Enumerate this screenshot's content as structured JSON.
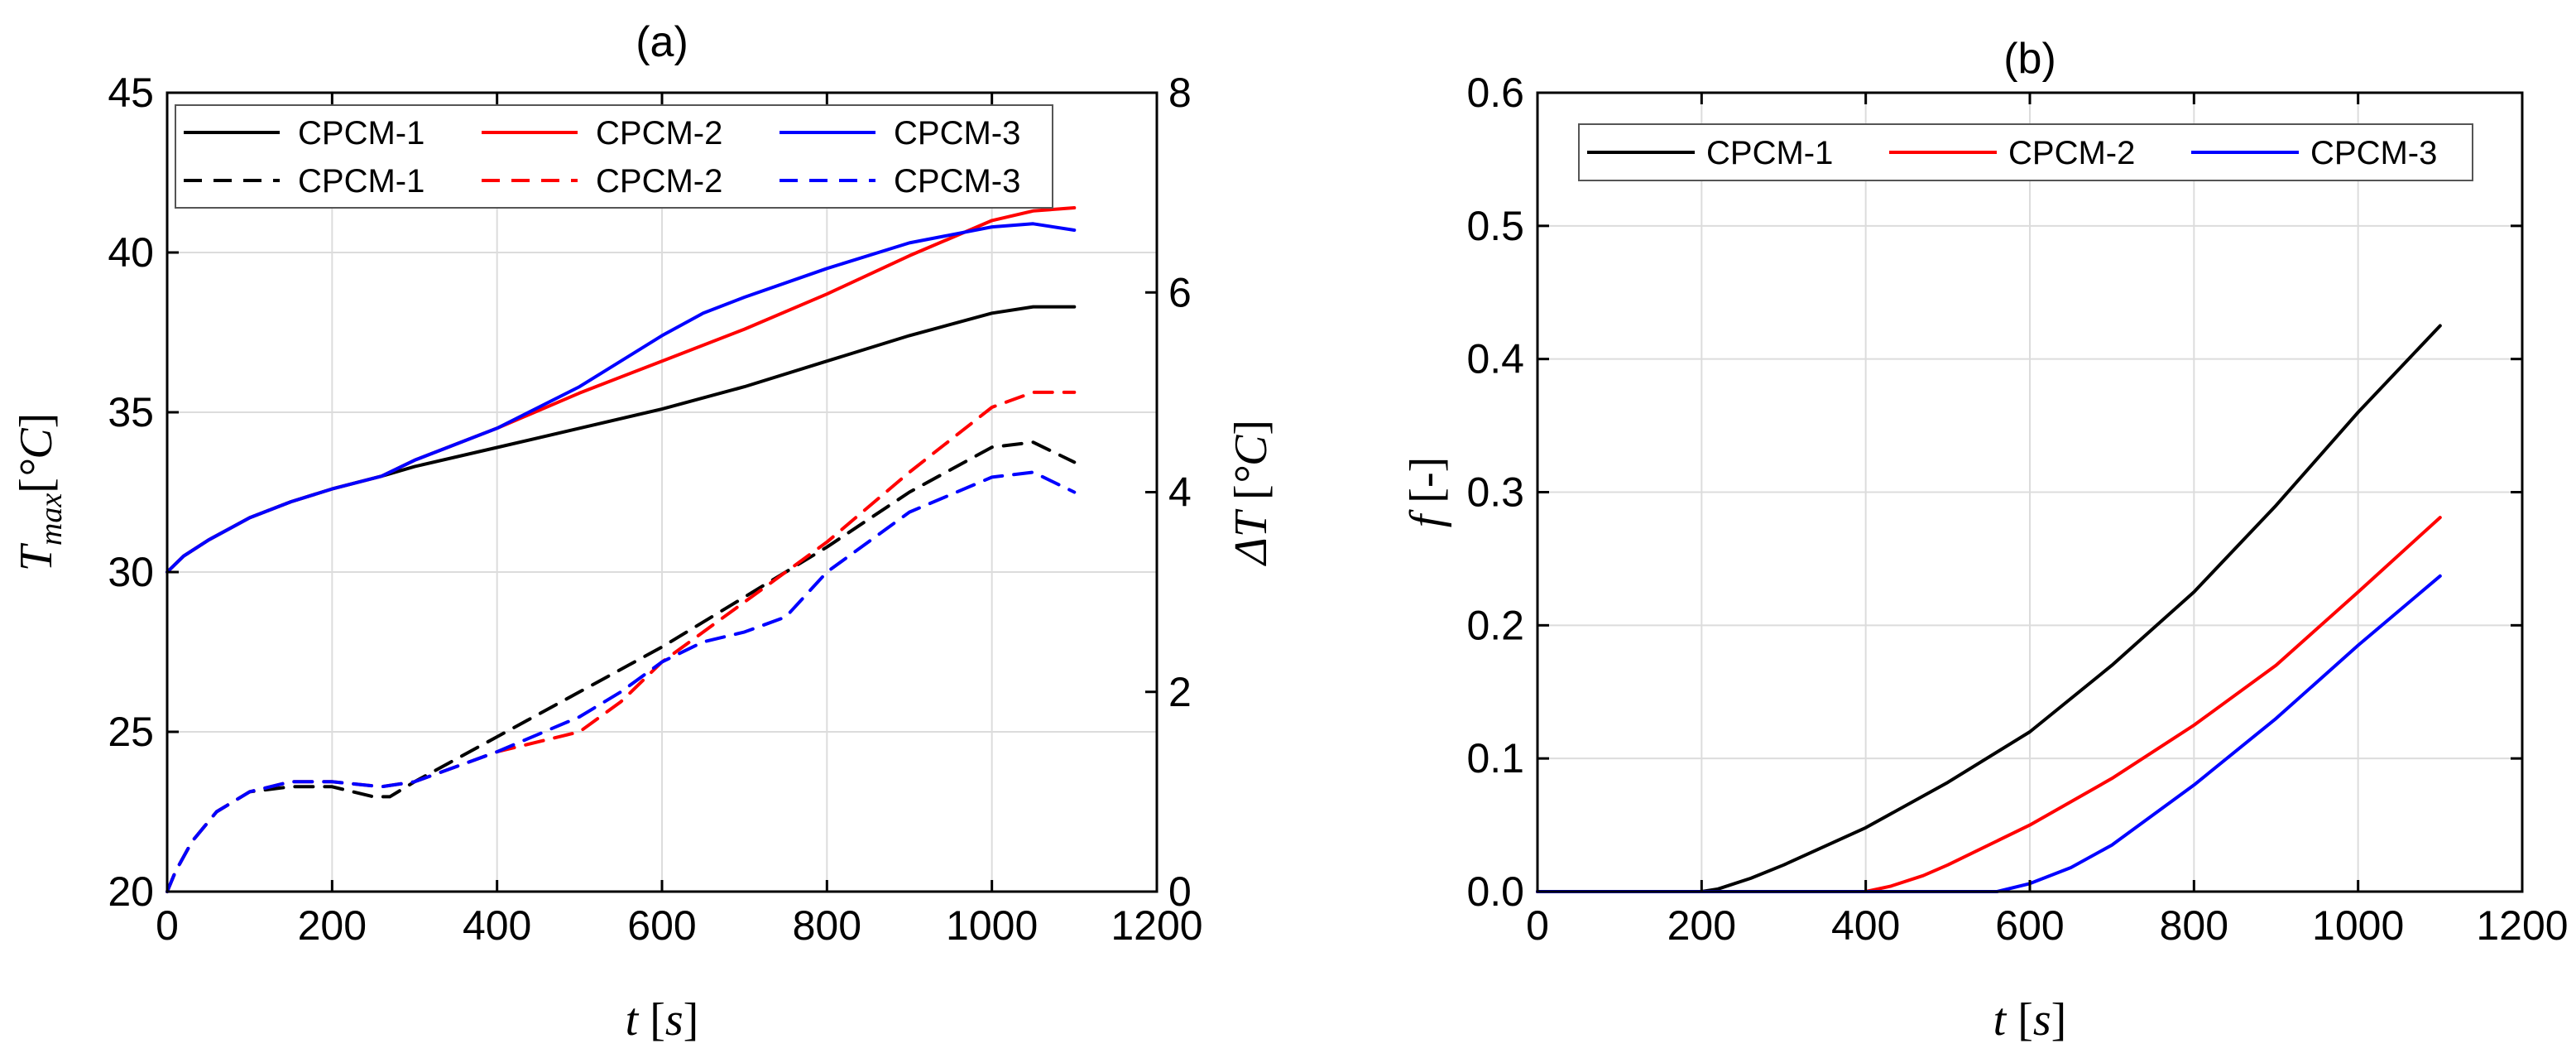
{
  "chart_data": [
    {
      "panel": "a",
      "type": "line",
      "title": "(a)",
      "xlabel": {
        "var": "t",
        "unit_open": " [",
        "unit": "s",
        "unit_close": "]"
      },
      "ylabel": {
        "var": "T",
        "sub": "max",
        "open": "[",
        "unit": "°C",
        "close": "]"
      },
      "y2label": {
        "var": "ΔT",
        "open": " [",
        "unit": "°C",
        "close": "]"
      },
      "xlim": [
        0,
        1200
      ],
      "ylim": [
        20,
        45
      ],
      "y2lim": [
        0,
        8
      ],
      "xticks": [
        "0",
        "200",
        "400",
        "600",
        "800",
        "1000",
        "1200"
      ],
      "yticks": [
        "20",
        "25",
        "30",
        "35",
        "40",
        "45"
      ],
      "y2ticks": [
        "0",
        "2",
        "4",
        "6",
        "8"
      ],
      "grid": true,
      "legend_location": "top-left",
      "series": [
        {
          "name": "CPCM-1",
          "axis": "left",
          "style": "solid",
          "color": "#000000",
          "x": [
            0,
            20,
            50,
            100,
            150,
            200,
            260,
            300,
            400,
            500,
            600,
            700,
            800,
            900,
            1000,
            1050,
            1100
          ],
          "y": [
            30.0,
            30.5,
            31.0,
            31.7,
            32.2,
            32.6,
            33.0,
            33.3,
            33.9,
            34.5,
            35.1,
            35.8,
            36.6,
            37.4,
            38.1,
            38.3,
            38.3
          ]
        },
        {
          "name": "CPCM-2",
          "axis": "left",
          "style": "solid",
          "color": "#ff0000",
          "x": [
            0,
            20,
            50,
            100,
            150,
            200,
            260,
            300,
            400,
            500,
            600,
            700,
            800,
            900,
            1000,
            1050,
            1100
          ],
          "y": [
            30.0,
            30.5,
            31.0,
            31.7,
            32.2,
            32.6,
            33.0,
            33.5,
            34.5,
            35.6,
            36.6,
            37.6,
            38.7,
            39.9,
            41.0,
            41.3,
            41.4
          ]
        },
        {
          "name": "CPCM-3",
          "axis": "left",
          "style": "solid",
          "color": "#0000ff",
          "x": [
            0,
            20,
            50,
            100,
            150,
            200,
            260,
            300,
            400,
            500,
            600,
            650,
            700,
            800,
            900,
            1000,
            1050,
            1100
          ],
          "y": [
            30.0,
            30.5,
            31.0,
            31.7,
            32.2,
            32.6,
            33.0,
            33.5,
            34.5,
            35.8,
            37.4,
            38.1,
            38.6,
            39.5,
            40.3,
            40.8,
            40.9,
            40.7
          ]
        },
        {
          "name": "CPCM-1",
          "axis": "right",
          "style": "dashed",
          "color": "#000000",
          "x": [
            0,
            10,
            30,
            60,
            100,
            150,
            200,
            250,
            270,
            300,
            400,
            500,
            600,
            700,
            800,
            900,
            1000,
            1050,
            1100
          ],
          "y": [
            0.0,
            0.2,
            0.5,
            0.8,
            1.0,
            1.05,
            1.05,
            0.95,
            0.95,
            1.1,
            1.55,
            2.0,
            2.45,
            2.95,
            3.45,
            4.0,
            4.45,
            4.5,
            4.3
          ]
        },
        {
          "name": "CPCM-2",
          "axis": "right",
          "style": "dashed",
          "color": "#ff0000",
          "x": [
            0,
            10,
            30,
            60,
            100,
            150,
            200,
            260,
            300,
            400,
            500,
            550,
            600,
            700,
            800,
            900,
            1000,
            1050,
            1100
          ],
          "y": [
            0.0,
            0.2,
            0.5,
            0.8,
            1.0,
            1.1,
            1.1,
            1.05,
            1.1,
            1.4,
            1.6,
            1.9,
            2.3,
            2.9,
            3.5,
            4.2,
            4.85,
            5.0,
            5.0
          ]
        },
        {
          "name": "CPCM-3",
          "axis": "right",
          "style": "dashed",
          "color": "#0000ff",
          "x": [
            0,
            10,
            30,
            60,
            100,
            150,
            200,
            260,
            300,
            400,
            500,
            550,
            600,
            650,
            700,
            750,
            800,
            900,
            1000,
            1050,
            1100
          ],
          "y": [
            0.0,
            0.2,
            0.5,
            0.8,
            1.0,
            1.1,
            1.1,
            1.05,
            1.1,
            1.4,
            1.75,
            2.0,
            2.3,
            2.5,
            2.6,
            2.75,
            3.2,
            3.8,
            4.15,
            4.2,
            4.0
          ]
        }
      ]
    },
    {
      "panel": "b",
      "type": "line",
      "title": "(b)",
      "xlabel": {
        "var": "t",
        "unit_open": " [",
        "unit": "s",
        "unit_close": "]"
      },
      "ylabel": {
        "var": "f",
        "unit_text": " [-]"
      },
      "xlim": [
        0,
        1200
      ],
      "ylim": [
        0,
        0.6
      ],
      "xticks": [
        "0",
        "200",
        "400",
        "600",
        "800",
        "1000",
        "1200"
      ],
      "yticks": [
        "0.0",
        "0.1",
        "0.2",
        "0.3",
        "0.4",
        "0.5",
        "0.6"
      ],
      "grid": true,
      "legend_location": "top",
      "series": [
        {
          "name": "CPCM-1",
          "style": "solid",
          "color": "#000000",
          "x": [
            0,
            200,
            220,
            260,
            300,
            400,
            500,
            600,
            700,
            800,
            900,
            1000,
            1100
          ],
          "y": [
            0.0,
            0.0,
            0.002,
            0.01,
            0.02,
            0.048,
            0.082,
            0.12,
            0.17,
            0.225,
            0.29,
            0.36,
            0.425
          ]
        },
        {
          "name": "CPCM-2",
          "style": "solid",
          "color": "#ff0000",
          "x": [
            0,
            400,
            430,
            470,
            500,
            600,
            700,
            800,
            900,
            1000,
            1100
          ],
          "y": [
            0.0,
            0.0,
            0.004,
            0.012,
            0.02,
            0.05,
            0.085,
            0.125,
            0.17,
            0.225,
            0.281
          ]
        },
        {
          "name": "CPCM-3",
          "style": "solid",
          "color": "#0000ff",
          "x": [
            0,
            560,
            600,
            650,
            700,
            800,
            900,
            1000,
            1100
          ],
          "y": [
            0.0,
            0.0,
            0.006,
            0.018,
            0.035,
            0.08,
            0.13,
            0.185,
            0.237
          ]
        }
      ]
    }
  ]
}
